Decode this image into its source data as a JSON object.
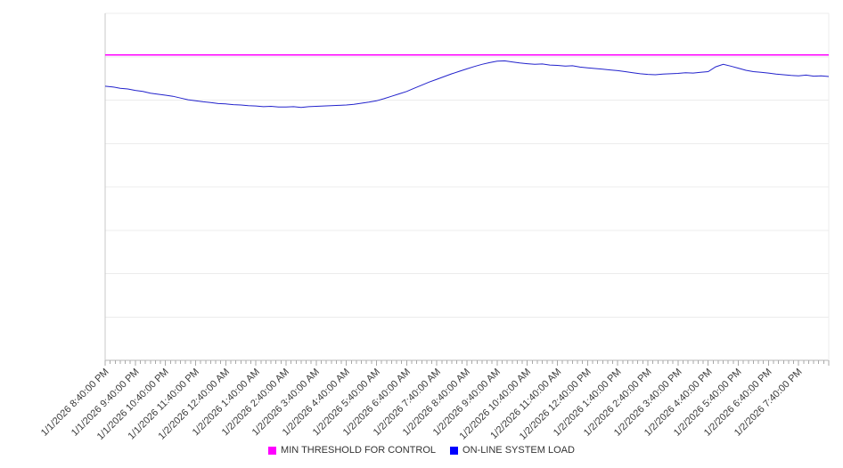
{
  "legend": [
    {
      "label": "MIN THRESHOLD FOR CONTROL",
      "color": "#ff00ff"
    },
    {
      "label": "ON-LINE SYSTEM LOAD",
      "color": "#0000ff"
    }
  ],
  "colors": {
    "threshold_line": "#ff00ff",
    "load_line": "#2222cc",
    "gridline": "#ececec",
    "axis": "#b5b5b5",
    "tick": "#a9a9a9",
    "label_text": "#3a3a3a",
    "background": "#ffffff"
  },
  "chart_data": {
    "type": "line",
    "title": "",
    "xlabel": "",
    "ylabel": "",
    "ylim": [
      0,
      100
    ],
    "y_axis_labels_visible": false,
    "grid": "horizontal",
    "gridline_step": 12.5,
    "legend_position": "bottom-center",
    "categories": [
      "1/1/2026 8:40:00 PM",
      "1/1/2026 9:40:00 PM",
      "1/1/2026 10:40:00 PM",
      "1/1/2026 11:40:00 PM",
      "1/2/2026 12:40:00 AM",
      "1/2/2026 1:40:00 AM",
      "1/2/2026 2:40:00 AM",
      "1/2/2026 3:40:00 AM",
      "1/2/2026 4:40:00 AM",
      "1/2/2026 5:40:00 AM",
      "1/2/2026 6:40:00 AM",
      "1/2/2026 7:40:00 AM",
      "1/2/2026 8:40:00 AM",
      "1/2/2026 9:40:00 AM",
      "1/2/2026 10:40:00 AM",
      "1/2/2026 11:40:00 AM",
      "1/2/2026 12:40:00 PM",
      "1/2/2026 1:40:00 PM",
      "1/2/2026 2:40:00 PM",
      "1/2/2026 3:40:00 PM",
      "1/2/2026 4:40:00 PM",
      "1/2/2026 5:40:00 PM",
      "1/2/2026 6:40:00 PM",
      "1/2/2026 7:40:00 PM"
    ],
    "minor_ticks_per_hour": 6,
    "series": [
      {
        "name": "MIN THRESHOLD FOR CONTROL",
        "type": "threshold",
        "color": "#ff00ff",
        "value": 88
      },
      {
        "name": "ON-LINE SYSTEM LOAD",
        "type": "line",
        "color": "#2222cc",
        "points_per_hour": 4,
        "values": [
          79.0,
          78.8,
          78.4,
          78.2,
          77.8,
          77.5,
          77.0,
          76.7,
          76.4,
          76.1,
          75.6,
          75.1,
          74.8,
          74.5,
          74.3,
          74.0,
          73.9,
          73.7,
          73.6,
          73.4,
          73.3,
          73.1,
          73.2,
          73.0,
          73.0,
          73.1,
          72.9,
          73.1,
          73.2,
          73.3,
          73.4,
          73.5,
          73.6,
          73.8,
          74.1,
          74.4,
          74.8,
          75.4,
          76.1,
          76.8,
          77.5,
          78.4,
          79.3,
          80.2,
          81.0,
          81.8,
          82.6,
          83.3,
          84.0,
          84.7,
          85.3,
          85.8,
          86.2,
          86.3,
          86.0,
          85.7,
          85.5,
          85.3,
          85.4,
          85.1,
          85.0,
          84.8,
          84.9,
          84.5,
          84.3,
          84.1,
          83.9,
          83.7,
          83.5,
          83.2,
          82.9,
          82.6,
          82.4,
          82.3,
          82.5,
          82.6,
          82.7,
          82.9,
          82.8,
          83.0,
          83.2,
          84.6,
          85.3,
          84.8,
          84.2,
          83.6,
          83.2,
          83.0,
          82.8,
          82.5,
          82.3,
          82.1,
          82.0,
          82.2,
          81.9,
          82.0,
          81.8
        ]
      }
    ]
  }
}
